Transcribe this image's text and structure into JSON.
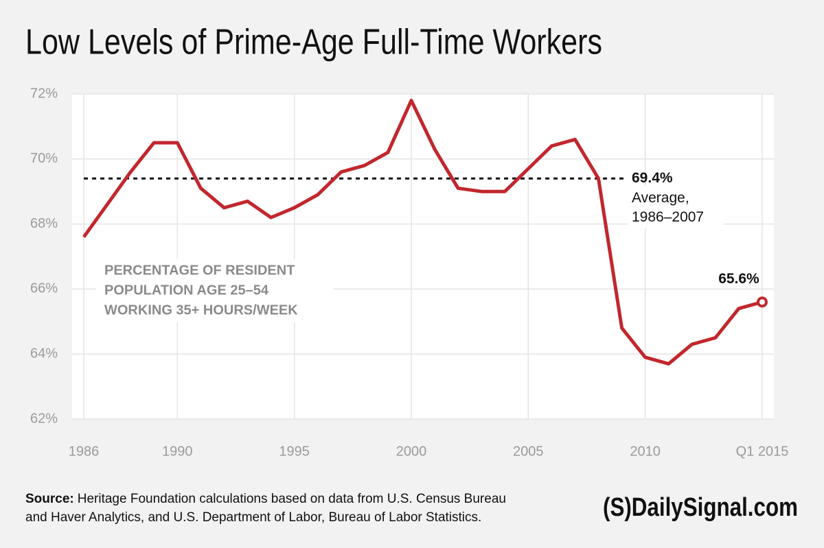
{
  "chart_data": {
    "type": "line",
    "title": "Low Levels of Prime-Age Full-Time Workers",
    "x": [
      1986,
      1987,
      1988,
      1989,
      1990,
      1991,
      1992,
      1993,
      1994,
      1995,
      1996,
      1997,
      1998,
      1999,
      2000,
      2001,
      2002,
      2003,
      2004,
      2005,
      2006,
      2007,
      2008,
      2009,
      2010,
      2011,
      2012,
      2013,
      2014,
      2015
    ],
    "series": [
      {
        "color": "#c1272d",
        "values": [
          67.6,
          68.6,
          69.6,
          70.5,
          70.5,
          69.1,
          68.5,
          68.7,
          68.2,
          68.5,
          68.9,
          69.6,
          69.8,
          70.2,
          71.8,
          70.3,
          69.1,
          69.0,
          69.0,
          69.7,
          70.4,
          70.6,
          69.4,
          64.8,
          63.9,
          63.7,
          64.3,
          64.5,
          65.4,
          65.6
        ],
        "value_labels": [
          null,
          null,
          null,
          null,
          null,
          null,
          null,
          null,
          null,
          null,
          null,
          null,
          null,
          null,
          null,
          null,
          null,
          null,
          null,
          null,
          null,
          null,
          null,
          null,
          null,
          null,
          null,
          null,
          null,
          "65.6%"
        ]
      }
    ],
    "xlim": [
      1985.5,
      2015.5
    ],
    "xticks": [
      1986,
      1990,
      1995,
      2000,
      2005,
      2010,
      {
        "value": 2015,
        "label": "Q1 2015"
      }
    ],
    "ylim": [
      62,
      72
    ],
    "yticks": [
      {
        "value": 62,
        "label": "62%"
      },
      {
        "value": 64,
        "label": "64%"
      },
      {
        "value": 66,
        "label": "66%"
      },
      {
        "value": 68,
        "label": "68%"
      },
      {
        "value": 70,
        "label": "70%"
      },
      {
        "value": 72,
        "label": "72%"
      }
    ],
    "grid": true,
    "reference_line": {
      "value": 69.4,
      "label": "69.4%",
      "note": [
        "Average,",
        "1986–2007"
      ]
    },
    "series_note": [
      "PERCENTAGE OF RESIDENT",
      "POPULATION AGE 25–54",
      "WORKING 35+ HOURS/WEEK"
    ],
    "source_label": "Source:",
    "source_lines": [
      "Heritage Foundation calculations based on data from U.S. Census Bureau",
      "and Haver Analytics, and U.S. Department of Labor, Bureau of Labor Statistics."
    ],
    "logo": "(S)DailySignal.com"
  }
}
